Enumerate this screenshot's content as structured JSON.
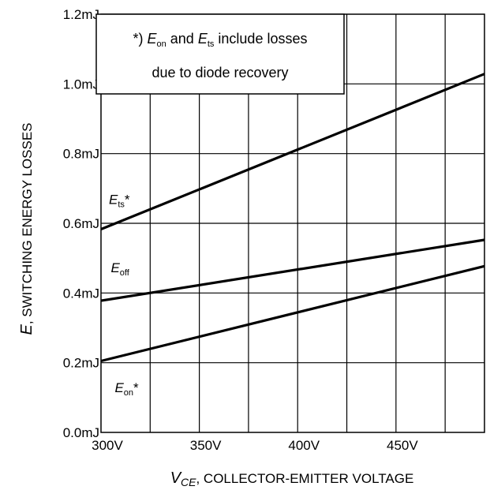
{
  "chart_data": {
    "type": "line",
    "x": [
      300,
      500
    ],
    "xlim": [
      300,
      495
    ],
    "ylim": [
      0.0,
      1.2
    ],
    "x_ticks": [
      300,
      350,
      400,
      450
    ],
    "x_tick_labels": [
      "300V",
      "350V",
      "400V",
      "450V"
    ],
    "y_ticks": [
      0.0,
      0.2,
      0.4,
      0.6,
      0.8,
      1.0,
      1.2
    ],
    "y_tick_labels": [
      "0.0mJ",
      "0.2mJ",
      "0.4mJ",
      "0.6mJ",
      "0.8mJ",
      "1.0mJ",
      "1.2mJ"
    ],
    "x_minor_grid": 25,
    "grid": true,
    "xlabel": {
      "symbol": "V",
      "subscript": "CE",
      "text": ", COLLECTOR-EMITTER VOLTAGE"
    },
    "ylabel": {
      "symbol": "E",
      "text": ", SWITCHING ENERGY LOSSES"
    },
    "series": [
      {
        "id": "ets",
        "symbol": "E",
        "subscript": "ts",
        "suffix": "*",
        "values": [
          0.583,
          1.04
        ],
        "label_at": [
          304,
          0.655
        ]
      },
      {
        "id": "eoff",
        "symbol": "E",
        "subscript": "off",
        "suffix": "",
        "values": [
          0.378,
          0.557
        ],
        "label_at": [
          305,
          0.46
        ]
      },
      {
        "id": "eon",
        "symbol": "E",
        "subscript": "on",
        "suffix": "*",
        "values": [
          0.205,
          0.484
        ],
        "label_at": [
          307,
          0.115
        ]
      }
    ],
    "annotation": {
      "lines": [
        [
          {
            "t": "*) "
          },
          {
            "t": "E",
            "italic": true
          },
          {
            "t": "on",
            "sub": true
          },
          {
            "t": " and "
          },
          {
            "t": "E",
            "italic": true
          },
          {
            "t": "ts",
            "sub": true
          },
          {
            "t": " include losses"
          }
        ],
        [
          {
            "t": "due to diode recovery"
          }
        ]
      ]
    }
  }
}
